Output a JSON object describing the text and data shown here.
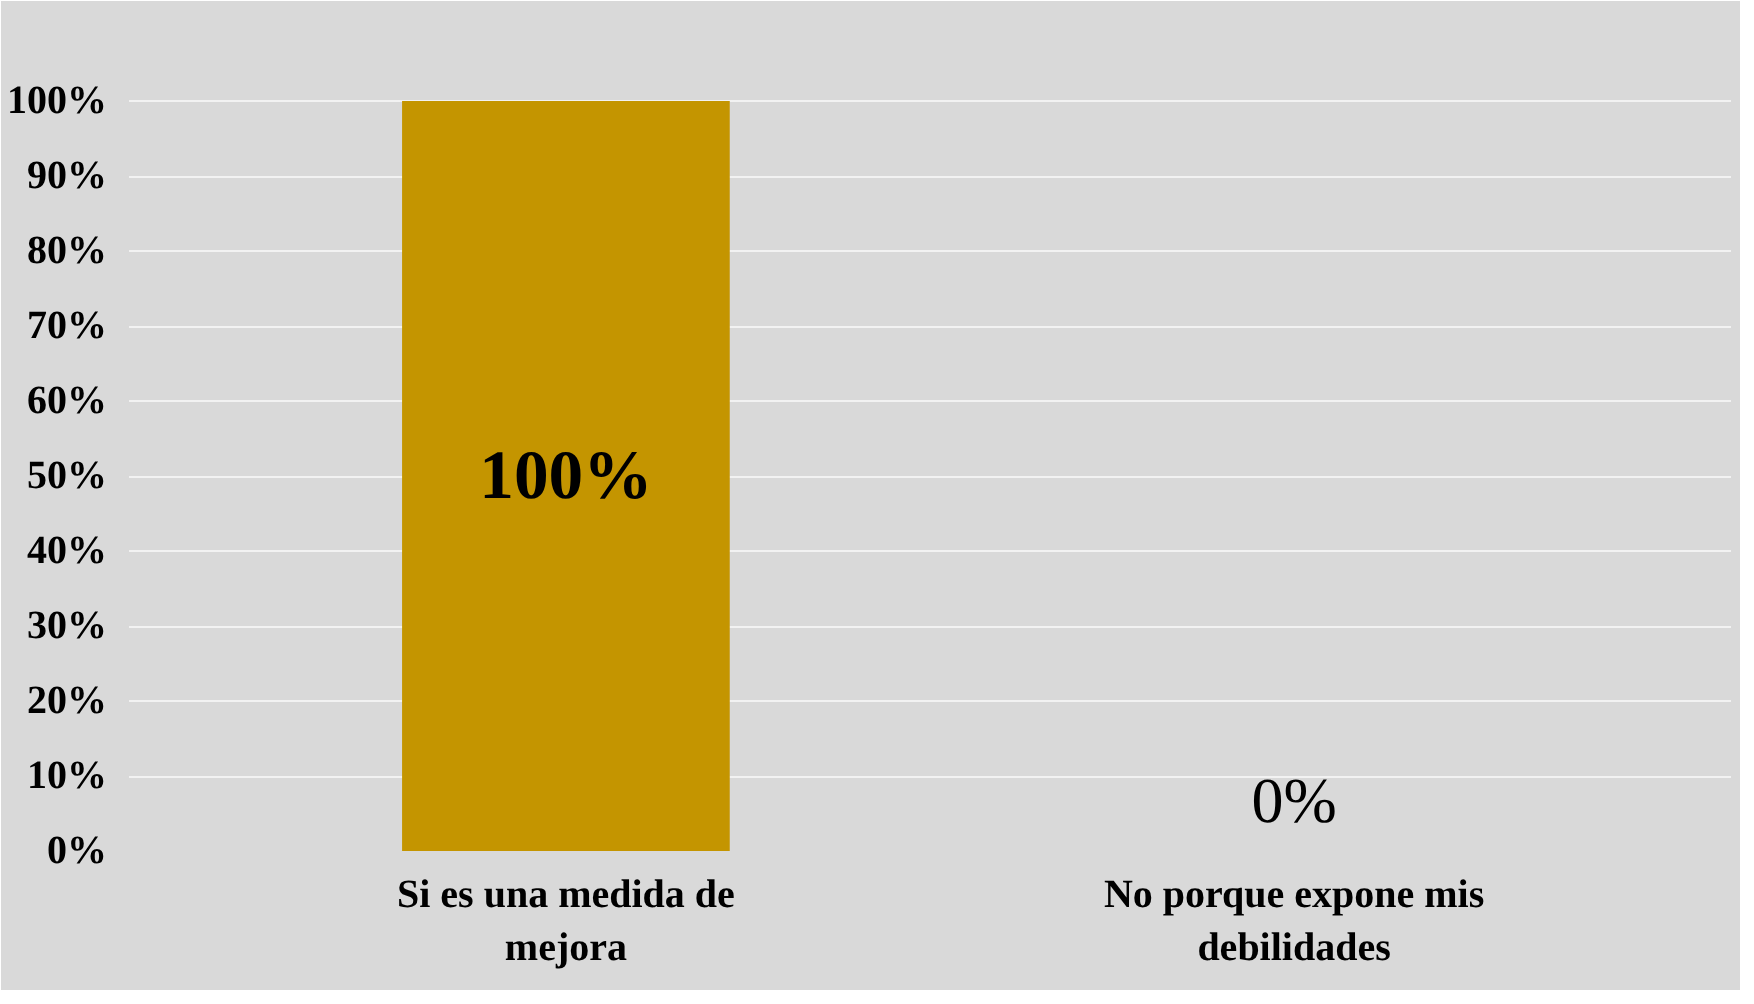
{
  "chart_data": {
    "type": "bar",
    "categories": [
      "Si es una medida de mejora",
      "No porque expone mis debilidades"
    ],
    "values": [
      100,
      0
    ],
    "color": "#c49500",
    "value_labels": [
      "100%",
      "0%"
    ],
    "ylim": [
      0,
      100
    ],
    "yticks": [
      {
        "value": 0,
        "label": "0%"
      },
      {
        "value": 10,
        "label": "10%"
      },
      {
        "value": 20,
        "label": "20%"
      },
      {
        "value": 30,
        "label": "30%"
      },
      {
        "value": 40,
        "label": "40%"
      },
      {
        "value": 50,
        "label": "50%"
      },
      {
        "value": 60,
        "label": "60%"
      },
      {
        "value": 70,
        "label": "70%"
      },
      {
        "value": 80,
        "label": "80%"
      },
      {
        "value": 90,
        "label": "90%"
      },
      {
        "value": 100,
        "label": "100%"
      }
    ],
    "grid": "y"
  }
}
